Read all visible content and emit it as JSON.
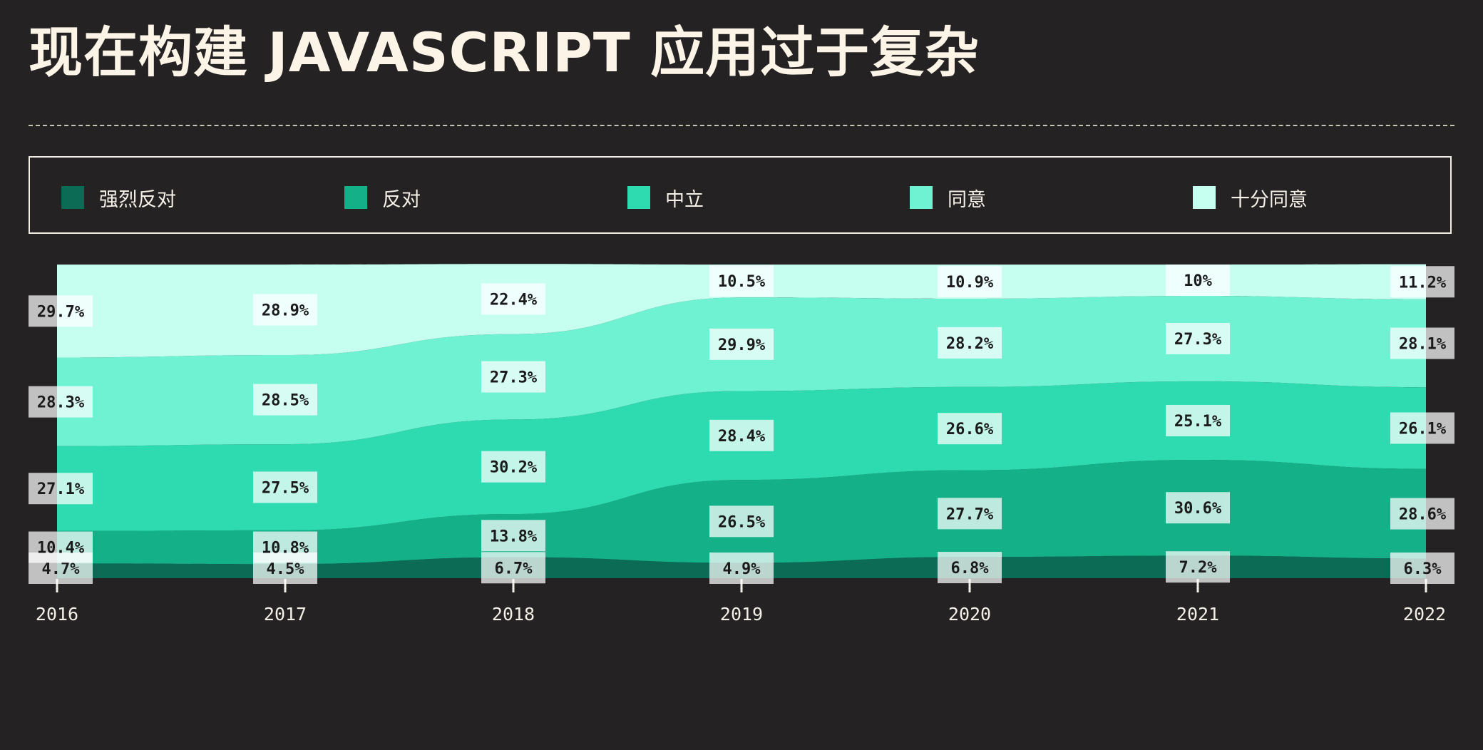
{
  "title": "现在构建 JAVASCRIPT 应用过于复杂",
  "legend": {
    "items": [
      {
        "label": "强烈反对",
        "color": "#0b6b54"
      },
      {
        "label": "反对",
        "color": "#14b088"
      },
      {
        "label": "中立",
        "color": "#2edbb0"
      },
      {
        "label": "同意",
        "color": "#6ff2d2"
      },
      {
        "label": "十分同意",
        "color": "#c6fff0"
      }
    ]
  },
  "chart_data": {
    "type": "area",
    "stacked": true,
    "normalized": true,
    "title": "现在构建 JAVASCRIPT 应用过于复杂",
    "x": [
      "2016",
      "2017",
      "2018",
      "2019",
      "2020",
      "2021",
      "2022"
    ],
    "ylim": [
      0,
      100
    ],
    "grid": false,
    "legend_position": "top",
    "series": [
      {
        "name": "强烈反对",
        "color": "#0b6b54",
        "values": [
          4.7,
          4.5,
          6.7,
          4.9,
          6.8,
          7.2,
          6.3
        ],
        "labels": [
          "4.7%",
          "4.5%",
          "6.7%",
          "4.9%",
          "6.8%",
          "7.2%",
          "6.3%"
        ]
      },
      {
        "name": "反对",
        "color": "#14b088",
        "values": [
          10.4,
          10.8,
          13.8,
          26.5,
          27.7,
          30.6,
          28.6
        ],
        "labels": [
          "10.4%",
          "10.8%",
          "13.8%",
          "26.5%",
          "27.7%",
          "30.6%",
          "28.6%"
        ]
      },
      {
        "name": "中立",
        "color": "#2edbb0",
        "values": [
          27.1,
          27.5,
          30.2,
          28.4,
          26.6,
          25.1,
          26.1
        ],
        "labels": [
          "27.1%",
          "27.5%",
          "30.2%",
          "28.4%",
          "26.6%",
          "25.1%",
          "26.1%"
        ]
      },
      {
        "name": "同意",
        "color": "#6ff2d2",
        "values": [
          28.3,
          28.5,
          27.3,
          29.9,
          28.2,
          27.3,
          28.1
        ],
        "labels": [
          "28.3%",
          "28.5%",
          "27.3%",
          "29.9%",
          "28.2%",
          "27.3%",
          "28.1%"
        ]
      },
      {
        "name": "十分同意",
        "color": "#c6fff0",
        "values": [
          29.7,
          28.9,
          22.4,
          10.5,
          10.9,
          10,
          11.2
        ],
        "labels": [
          "29.7%",
          "28.9%",
          "22.4%",
          "10.5%",
          "10.9%",
          "10%",
          "11.2%"
        ]
      }
    ]
  }
}
